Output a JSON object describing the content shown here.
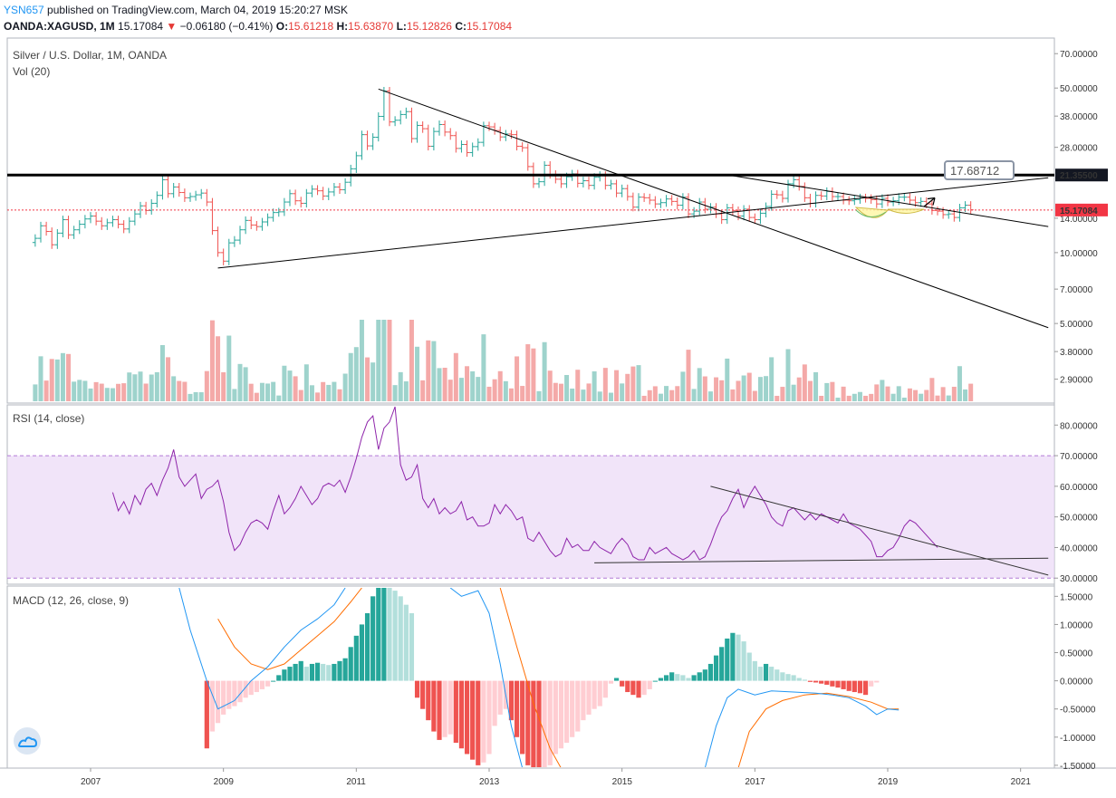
{
  "header": {
    "user": "YSN657",
    "published": "published on TradingView.com, March 04, 2019 15:20:27 MSK",
    "symbol": "OANDA:XAGUSD, 1M",
    "last": "15.17084",
    "change_arrow": "▼",
    "change": "−0.06180 (−0.41%)",
    "o_label": "O:",
    "o": "15.61218",
    "h_label": "H:",
    "h": "15.63870",
    "l_label": "L:",
    "l": "15.12826",
    "c_label": "C:",
    "c": "15.17084"
  },
  "chart_data": [
    {
      "type": "ohlc",
      "title": "Silver / U.S. Dollar, 1M, OANDA",
      "subtitle": "Vol (20)",
      "scale": "log",
      "ylim": [
        2.4,
        78
      ],
      "price_ticks": [
        "70.00000",
        "50.00000",
        "38.00000",
        "28.00000",
        "21.35500",
        "14.00000",
        "10.00000",
        "7.00000",
        "5.00000",
        "3.80000",
        "2.90000"
      ],
      "tick_values": [
        70,
        50,
        38,
        28,
        21.355,
        14,
        10,
        7,
        5,
        3.8,
        2.9
      ],
      "last_price": "15.17084",
      "last_price_value": 15.17084,
      "horizontal_level": 21.355,
      "annotation": "17.68712",
      "annotation_value": 17.68712,
      "colors": {
        "up": "#26a69a",
        "down": "#ef5350",
        "last": "#f23645"
      },
      "close_series": {
        "start": "2006-03",
        "closes": [
          11.5,
          13.0,
          12.3,
          10.8,
          12.1,
          13.8,
          11.9,
          12.5,
          13.2,
          13.9,
          14.3,
          13.6,
          13.0,
          13.4,
          13.8,
          13.2,
          12.6,
          13.6,
          14.6,
          15.8,
          15.1,
          16.2,
          17.5,
          20.4,
          17.8,
          19.0,
          18.0,
          17.1,
          17.3,
          17.6,
          17.9,
          16.4,
          12.4,
          10.0,
          9.2,
          11.0,
          11.3,
          12.5,
          13.7,
          13.1,
          12.9,
          13.5,
          14.1,
          14.8,
          14.9,
          16.4,
          17.8,
          16.6,
          16.2,
          17.9,
          18.6,
          18.3,
          17.4,
          18.1,
          19.0,
          18.5,
          19.9,
          22.7,
          25.8,
          31.7,
          28.4,
          30.9,
          37.9,
          48.6,
          35.9,
          36.5,
          38.6,
          39.7,
          30.5,
          34.7,
          33.6,
          28.3,
          32.7,
          35.0,
          32.5,
          31.4,
          27.7,
          28.8,
          26.6,
          28.2,
          29.4,
          34.6,
          34.2,
          33.0,
          31.0,
          31.9,
          31.7,
          28.3,
          27.9,
          23.2,
          19.6,
          20.0,
          23.5,
          21.5,
          20.5,
          19.6,
          21.0,
          21.6,
          19.7,
          20.2,
          19.3,
          20.9,
          21.3,
          19.3,
          19.6,
          17.9,
          18.7,
          17.3,
          15.6,
          17.2,
          17.1,
          16.7,
          16.1,
          16.3,
          16.9,
          16.5,
          15.9,
          17.2,
          14.6,
          15.0,
          16.4,
          15.3,
          15.6,
          14.6,
          13.8,
          15.5,
          15.1,
          14.3,
          15.3,
          14.1,
          13.8,
          14.7,
          15.7,
          17.7,
          17.6,
          17.0,
          19.6,
          20.4,
          19.1,
          17.1,
          16.2,
          17.5,
          17.4,
          18.2,
          17.3,
          17.3,
          16.7,
          16.6,
          16.8,
          17.1,
          17.0,
          16.8,
          16.1,
          17.0,
          16.4,
          16.6,
          17.2,
          17.2,
          16.7,
          16.3,
          16.5,
          16.1,
          15.1,
          15.0,
          14.5,
          14.6,
          14.1,
          15.5,
          15.9,
          15.2
        ]
      }
    },
    {
      "type": "line",
      "title": "RSI (14, close)",
      "ylim": [
        28,
        86
      ],
      "ticks": [
        "80.00000",
        "70.00000",
        "60.00000",
        "50.00000",
        "40.00000",
        "30.00000"
      ],
      "tick_values": [
        80,
        70,
        60,
        50,
        40,
        30
      ],
      "band": [
        30,
        70
      ],
      "band_color": "#ebd8f7",
      "line_color": "#8e24aa",
      "start": "2007-05",
      "values": [
        58,
        52,
        55,
        51,
        57,
        54,
        59,
        61,
        57,
        62,
        66,
        72,
        63,
        60,
        62,
        64,
        56,
        59,
        60,
        62,
        55,
        45,
        39,
        41,
        45,
        48,
        49,
        48,
        46,
        52,
        57,
        51,
        53,
        56,
        60,
        57,
        54,
        56,
        60,
        61,
        60,
        62,
        58,
        63,
        69,
        76,
        81,
        83,
        72,
        79,
        81,
        86,
        67,
        62,
        63,
        67,
        56,
        53,
        56,
        51,
        53,
        51,
        52,
        55,
        49,
        50,
        47,
        47,
        48,
        54,
        51,
        54,
        52,
        49,
        50,
        43,
        42,
        45,
        42,
        39,
        37,
        38,
        43,
        40,
        41,
        39,
        39,
        42,
        40,
        39,
        38,
        41,
        43,
        41,
        37,
        36,
        36,
        40,
        38,
        39,
        40,
        38,
        37,
        36,
        37,
        39,
        36,
        37,
        41,
        46,
        50,
        52,
        56,
        59,
        53,
        57,
        60,
        57,
        54,
        50,
        48,
        47,
        52,
        53,
        51,
        49,
        51,
        49,
        51,
        50,
        49,
        48,
        51,
        48,
        47,
        46,
        44,
        42,
        37,
        37,
        39,
        40,
        43,
        47,
        49,
        48,
        46,
        44,
        42,
        40
      ]
    },
    {
      "type": "macd",
      "title": "MACD (12, 26, close, 9)",
      "ylim": [
        -1.55,
        1.65
      ],
      "ticks": [
        "1.50000",
        "1.00000",
        "0.50000",
        "0.00000",
        "-0.50000",
        "-1.00000",
        "-1.50000"
      ],
      "tick_values": [
        1.5,
        1,
        0.5,
        0,
        -0.5,
        -1,
        -1.5
      ],
      "macd_color": "#2196f3",
      "signal_color": "#ff6d00",
      "hist_colors": {
        "pos_strong": "#26a69a",
        "pos_weak": "#b2dfdb",
        "neg_strong": "#ef5350",
        "neg_weak": "#ffcdd2"
      },
      "start": "2008-10",
      "histogram": [
        -1.2,
        -0.9,
        -0.75,
        -0.6,
        -0.5,
        -0.45,
        -0.38,
        -0.3,
        -0.25,
        -0.2,
        -0.15,
        -0.1,
        0.0,
        0.1,
        0.2,
        0.25,
        0.3,
        0.35,
        0.25,
        0.3,
        0.32,
        0.3,
        0.28,
        0.3,
        0.35,
        0.4,
        0.6,
        0.8,
        1.0,
        1.2,
        1.5,
        1.7,
        1.8,
        1.65,
        1.6,
        1.5,
        1.35,
        1.2,
        -0.3,
        -0.5,
        -0.7,
        -0.9,
        -1.05,
        -1.0,
        -0.95,
        -1.1,
        -1.2,
        -1.3,
        -1.4,
        -1.5,
        -1.45,
        -1.3,
        -0.8,
        -0.6,
        -0.5,
        -0.7,
        -1.0,
        -1.3,
        -1.5,
        -1.6,
        -1.7,
        -1.6,
        -1.5,
        -1.3,
        -1.2,
        -1.1,
        -1.0,
        -0.9,
        -0.7,
        -0.6,
        -0.5,
        -0.45,
        -0.3,
        -0.05,
        0.05,
        -0.1,
        -0.2,
        -0.25,
        -0.3,
        -0.25,
        -0.15,
        0.0,
        0.05,
        0.1,
        0.15,
        0.12,
        0.1,
        0.05,
        0.1,
        0.15,
        0.2,
        0.3,
        0.45,
        0.6,
        0.75,
        0.85,
        0.82,
        0.7,
        0.5,
        0.35,
        0.25,
        0.3,
        0.25,
        0.2,
        0.15,
        0.12,
        0.1,
        0.05,
        0.02,
        -0.02,
        -0.03,
        -0.05,
        -0.07,
        -0.1,
        -0.12,
        -0.15,
        -0.18,
        -0.2,
        -0.22,
        -0.25,
        -0.1,
        -0.03
      ],
      "macd_line": [
        [
          "2008-05",
          1.65
        ],
        [
          "2008-07",
          0.9
        ],
        [
          "2008-10",
          0.0
        ],
        [
          "2008-12",
          -0.5
        ],
        [
          "2009-03",
          -0.35
        ],
        [
          "2009-06",
          0.0
        ],
        [
          "2009-09",
          0.25
        ],
        [
          "2009-12",
          0.6
        ],
        [
          "2010-03",
          0.9
        ],
        [
          "2010-06",
          1.1
        ],
        [
          "2010-09",
          1.35
        ],
        [
          "2010-11",
          1.65
        ],
        [
          "2012-06",
          1.65
        ],
        [
          "2012-08",
          1.5
        ],
        [
          "2012-11",
          1.6
        ],
        [
          "2013-01",
          1.2
        ],
        [
          "2013-03",
          0.3
        ],
        [
          "2013-05",
          -0.8
        ],
        [
          "2013-07",
          -1.55
        ],
        [
          "2016-04",
          -1.55
        ],
        [
          "2016-06",
          -0.8
        ],
        [
          "2016-08",
          -0.3
        ],
        [
          "2016-10",
          -0.15
        ],
        [
          "2017-01",
          -0.25
        ],
        [
          "2017-04",
          -0.18
        ],
        [
          "2017-08",
          -0.2
        ],
        [
          "2017-12",
          -0.22
        ],
        [
          "2018-03",
          -0.25
        ],
        [
          "2018-06",
          -0.3
        ],
        [
          "2018-09",
          -0.45
        ],
        [
          "2018-11",
          -0.6
        ],
        [
          "2019-01",
          -0.5
        ],
        [
          "2019-03",
          -0.52
        ]
      ],
      "signal_line": [
        [
          "2008-12",
          1.1
        ],
        [
          "2009-03",
          0.6
        ],
        [
          "2009-06",
          0.3
        ],
        [
          "2009-09",
          0.2
        ],
        [
          "2009-12",
          0.3
        ],
        [
          "2010-03",
          0.55
        ],
        [
          "2010-06",
          0.8
        ],
        [
          "2010-09",
          1.05
        ],
        [
          "2010-12",
          1.4
        ],
        [
          "2011-02",
          1.65
        ],
        [
          "2013-03",
          1.65
        ],
        [
          "2013-06",
          0.6
        ],
        [
          "2013-09",
          -0.4
        ],
        [
          "2013-12",
          -1.2
        ],
        [
          "2014-02",
          -1.55
        ],
        [
          "2016-10",
          -1.55
        ],
        [
          "2016-12",
          -0.9
        ],
        [
          "2017-03",
          -0.5
        ],
        [
          "2017-06",
          -0.35
        ],
        [
          "2017-10",
          -0.25
        ],
        [
          "2018-02",
          -0.22
        ],
        [
          "2018-06",
          -0.28
        ],
        [
          "2018-10",
          -0.38
        ],
        [
          "2019-01",
          -0.5
        ],
        [
          "2019-03",
          -0.5
        ]
      ]
    }
  ],
  "x_axis": {
    "labels": [
      "2007",
      "2009",
      "2011",
      "2013",
      "2015",
      "2017",
      "2019",
      "2021"
    ],
    "years": [
      2007,
      2009,
      2011,
      2013,
      2015,
      2017,
      2019,
      2021
    ]
  },
  "trendlines": {
    "price": [
      {
        "from": [
          "2011-05",
          49.5
        ],
        "to": [
          "2021-06",
          4.8
        ]
      },
      {
        "from": [
          "2008-12",
          8.6
        ],
        "to": [
          "2021-06",
          20.8
        ]
      },
      {
        "from": [
          "2016-08",
          21.4
        ],
        "to": [
          "2021-06",
          12.9
        ]
      }
    ],
    "rsi": [
      {
        "from": [
          "2016-05",
          60
        ],
        "to": [
          "2021-06",
          31
        ]
      },
      {
        "from": [
          "2014-08",
          35
        ],
        "to": [
          "2021-06",
          36.5
        ]
      }
    ]
  }
}
